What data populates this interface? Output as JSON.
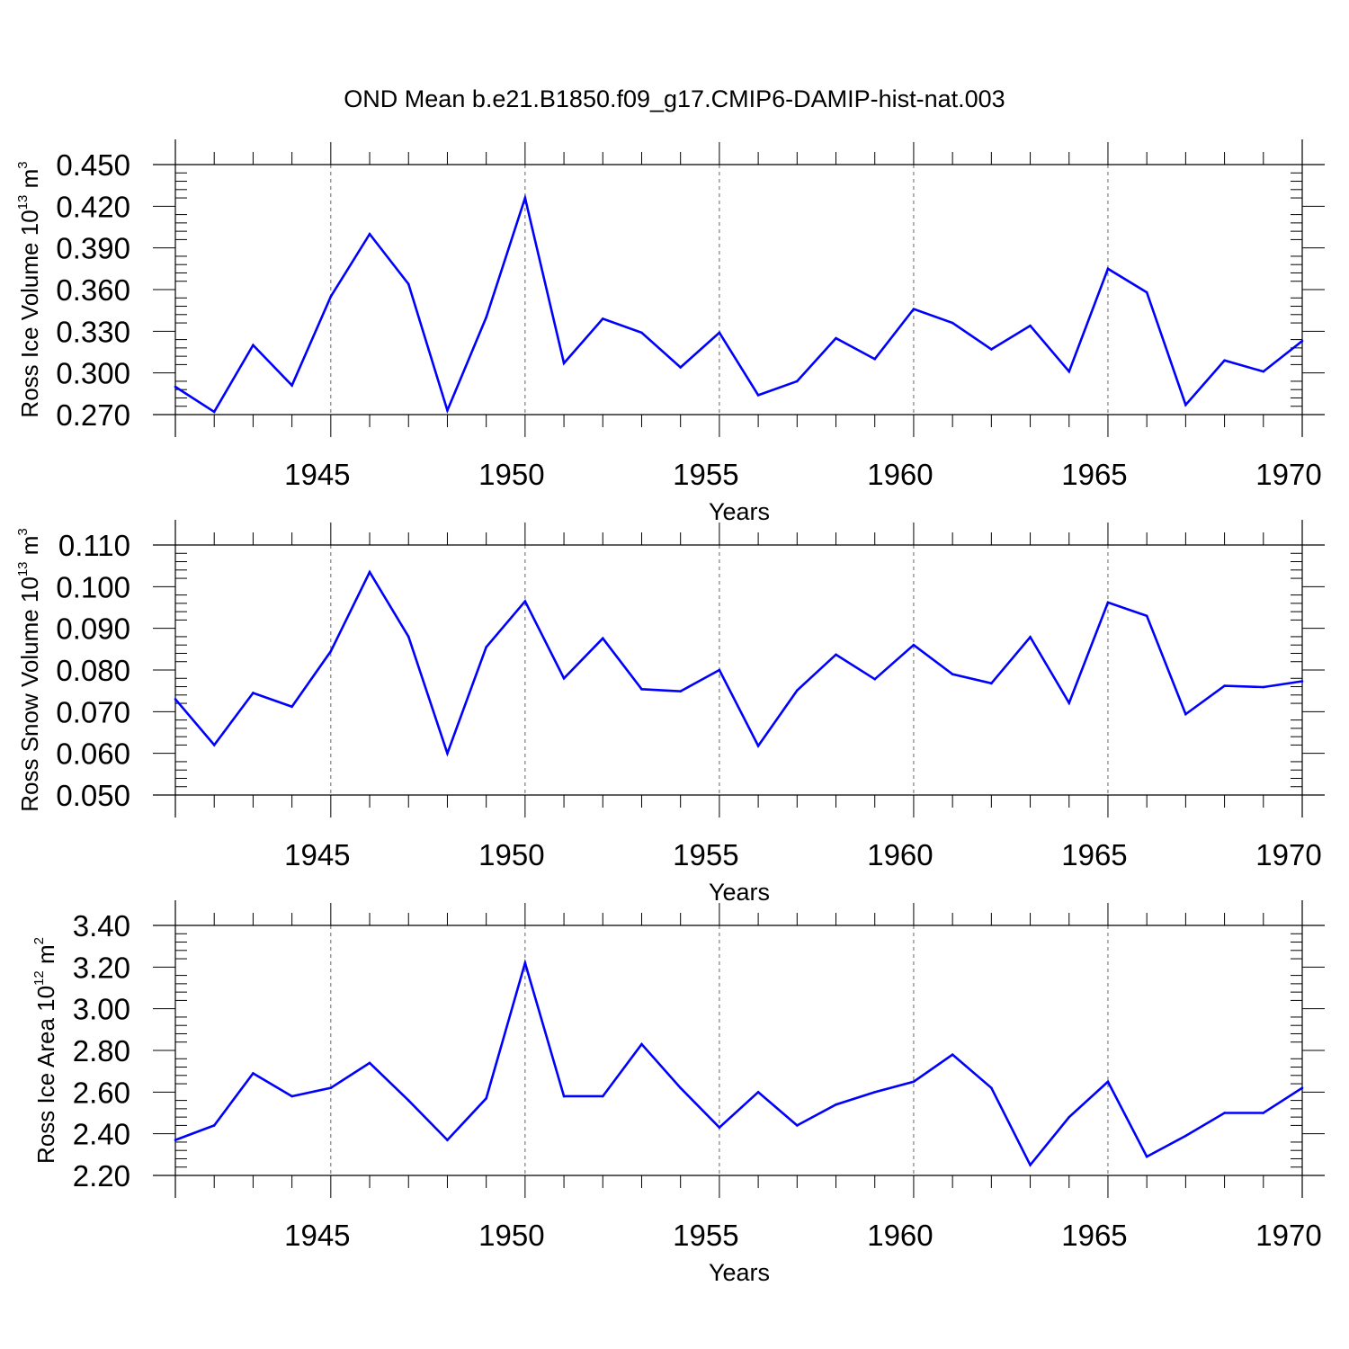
{
  "figure": {
    "title": "OND Mean b.e21.B1850.f09_g17.CMIP6-DAMIP-hist-nat.003",
    "line_color": "#0000ff",
    "grid_color": "#666666"
  },
  "chart_data": [
    {
      "type": "line",
      "ylabel": {
        "main": "Ross Ice Volume 10",
        "exp": "13",
        "unit": " m",
        "unit_exp": "3"
      },
      "xlabel": "Years",
      "xlim": [
        1941,
        1970
      ],
      "ylim": [
        0.27,
        0.45
      ],
      "yticks": [
        "0.270",
        "0.300",
        "0.330",
        "0.360",
        "0.390",
        "0.420",
        "0.450"
      ],
      "ytick_values": [
        0.27,
        0.3,
        0.33,
        0.36,
        0.39,
        0.42,
        0.45
      ],
      "xticks": [
        "1945",
        "1950",
        "1955",
        "1960",
        "1965",
        "1970"
      ],
      "xtick_values": [
        1945,
        1950,
        1955,
        1960,
        1965,
        1970
      ],
      "grid": "vertical dashed at major x ticks",
      "x": [
        1941,
        1942,
        1943,
        1944,
        1945,
        1946,
        1947,
        1948,
        1949,
        1950,
        1951,
        1952,
        1953,
        1954,
        1955,
        1956,
        1957,
        1958,
        1959,
        1960,
        1961,
        1962,
        1963,
        1964,
        1965,
        1966,
        1967,
        1968,
        1969,
        1970
      ],
      "series": [
        {
          "values": [
            0.29,
            0.272,
            0.32,
            0.291,
            0.355,
            0.4,
            0.364,
            0.273,
            0.34,
            0.426,
            0.307,
            0.339,
            0.329,
            0.304,
            0.329,
            0.284,
            0.294,
            0.325,
            0.31,
            0.346,
            0.336,
            0.317,
            0.334,
            0.301,
            0.375,
            0.358,
            0.277,
            0.309,
            0.301,
            0.323
          ]
        }
      ]
    },
    {
      "type": "line",
      "ylabel": {
        "main": "Ross Snow Volume 10",
        "exp": "13",
        "unit": " m",
        "unit_exp": "3"
      },
      "xlabel": "Years",
      "xlim": [
        1941,
        1970
      ],
      "ylim": [
        0.05,
        0.11
      ],
      "yticks": [
        "0.050",
        "0.060",
        "0.070",
        "0.080",
        "0.090",
        "0.100",
        "0.110"
      ],
      "ytick_values": [
        0.05,
        0.06,
        0.07,
        0.08,
        0.09,
        0.1,
        0.11
      ],
      "xticks": [
        "1945",
        "1950",
        "1955",
        "1960",
        "1965",
        "1970"
      ],
      "xtick_values": [
        1945,
        1950,
        1955,
        1960,
        1965,
        1970
      ],
      "grid": "vertical dashed at major x ticks",
      "x": [
        1941,
        1942,
        1943,
        1944,
        1945,
        1946,
        1947,
        1948,
        1949,
        1950,
        1951,
        1952,
        1953,
        1954,
        1955,
        1956,
        1957,
        1958,
        1959,
        1960,
        1961,
        1962,
        1963,
        1964,
        1965,
        1966,
        1967,
        1968,
        1969,
        1970
      ],
      "series": [
        {
          "values": [
            0.073,
            0.062,
            0.0745,
            0.0712,
            0.0845,
            0.1035,
            0.088,
            0.06,
            0.0855,
            0.0965,
            0.078,
            0.0876,
            0.0754,
            0.0749,
            0.08,
            0.0618,
            0.0751,
            0.0837,
            0.0778,
            0.086,
            0.079,
            0.0768,
            0.0879,
            0.0721,
            0.0962,
            0.093,
            0.0694,
            0.0762,
            0.0759,
            0.0773
          ]
        }
      ]
    },
    {
      "type": "line",
      "ylabel": {
        "main": "Ross Ice Area 10",
        "exp": "12",
        "unit": " m",
        "unit_exp": "2"
      },
      "xlabel": "Years",
      "xlim": [
        1941,
        1970
      ],
      "ylim": [
        2.2,
        3.4
      ],
      "yticks": [
        "2.20",
        "2.40",
        "2.60",
        "2.80",
        "3.00",
        "3.20",
        "3.40"
      ],
      "ytick_values": [
        2.2,
        2.4,
        2.6,
        2.8,
        3.0,
        3.2,
        3.4
      ],
      "xticks": [
        "1945",
        "1950",
        "1955",
        "1960",
        "1965",
        "1970"
      ],
      "xtick_values": [
        1945,
        1950,
        1955,
        1960,
        1965,
        1970
      ],
      "grid": "vertical dashed at major x ticks",
      "x": [
        1941,
        1942,
        1943,
        1944,
        1945,
        1946,
        1947,
        1948,
        1949,
        1950,
        1951,
        1952,
        1953,
        1954,
        1955,
        1956,
        1957,
        1958,
        1959,
        1960,
        1961,
        1962,
        1963,
        1964,
        1965,
        1966,
        1967,
        1968,
        1969,
        1970
      ],
      "series": [
        {
          "values": [
            2.37,
            2.44,
            2.69,
            2.58,
            2.62,
            2.74,
            2.56,
            2.37,
            2.57,
            3.22,
            2.58,
            2.58,
            2.83,
            2.62,
            2.43,
            2.6,
            2.44,
            2.54,
            2.6,
            2.65,
            2.78,
            2.62,
            2.25,
            2.48,
            2.65,
            2.29,
            2.39,
            2.5,
            2.5,
            2.62
          ]
        }
      ]
    }
  ]
}
